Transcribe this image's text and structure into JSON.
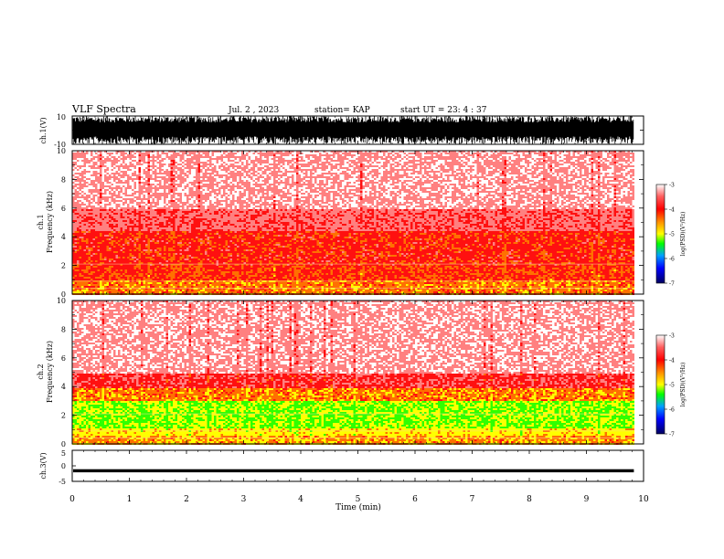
{
  "header": {
    "title": "VLF Spectra",
    "date": "Jul. 2 , 2023",
    "station": "station= KAP",
    "start": "start UT =  23: 4  : 37"
  },
  "chart_data": [
    {
      "type": "line",
      "panel": "ch1-waveform",
      "ylabel": "ch.1(V)",
      "ylim": [
        -10,
        10
      ],
      "yticks": [
        "10",
        "-10"
      ],
      "xlim": [
        0,
        10
      ],
      "x_extent": [
        0,
        9.83
      ],
      "color": "#000000",
      "description_values": {
        "envelope_max": 10,
        "envelope_min": -10
      }
    },
    {
      "type": "heatmap",
      "panel": "ch1-spectrogram",
      "ylabel": "ch.1",
      "ylabel2": "Frequency (kHz)",
      "ylim": [
        0,
        10
      ],
      "yticks": [
        "0",
        "2",
        "4",
        "6",
        "8",
        "10"
      ],
      "xlim": [
        0,
        10
      ],
      "x_extent": [
        0,
        9.83
      ],
      "band_levels": [
        {
          "fmin": 0,
          "fmax": 1.0,
          "level": -4.2
        },
        {
          "fmin": 1.0,
          "fmax": 2.0,
          "level": -3.9
        },
        {
          "fmin": 2.0,
          "fmax": 4.5,
          "level": -3.8
        },
        {
          "fmin": 4.5,
          "fmax": 6.0,
          "level": -3.4
        },
        {
          "fmin": 6.0,
          "fmax": 10.0,
          "level": -3.1
        }
      ],
      "colorbar": {
        "label": "log(PSD)(V²/Hz)",
        "ticks": [
          "-3",
          "-4",
          "-5",
          "-6",
          "-7"
        ],
        "range": [
          -7,
          -3
        ]
      }
    },
    {
      "type": "heatmap",
      "panel": "ch2-spectrogram",
      "ylabel": "ch.2",
      "ylabel2": "Frequency (kHz)",
      "ylim": [
        0,
        10
      ],
      "yticks": [
        "0",
        "2",
        "4",
        "6",
        "8",
        "10"
      ],
      "xlim": [
        0,
        10
      ],
      "x_extent": [
        0,
        9.83
      ],
      "band_levels": [
        {
          "fmin": 0,
          "fmax": 0.7,
          "level": -4.3
        },
        {
          "fmin": 0.7,
          "fmax": 1.2,
          "level": -4.6
        },
        {
          "fmin": 1.2,
          "fmax": 3.0,
          "level": -5.0
        },
        {
          "fmin": 3.0,
          "fmax": 4.0,
          "level": -4.2
        },
        {
          "fmin": 4.0,
          "fmax": 5.0,
          "level": -3.6
        },
        {
          "fmin": 5.0,
          "fmax": 10.0,
          "level": -3.1
        }
      ],
      "colorbar": {
        "label": "log(PSD)(V²/Hz)",
        "ticks": [
          "-3",
          "-4",
          "-5",
          "-6",
          "-7"
        ],
        "range": [
          -7,
          -3
        ]
      }
    },
    {
      "type": "line",
      "panel": "ch3-waveform",
      "ylabel": "ch.3(V)",
      "ylim": [
        -5,
        5
      ],
      "yticks": [
        "5",
        "0",
        "-5"
      ],
      "xlim": [
        0,
        10
      ],
      "x_extent": [
        0,
        9.83
      ],
      "values": {
        "mean": -1.6,
        "amplitude": 0.5
      },
      "xlabel": "Time (min)",
      "xticks": [
        "0",
        "1",
        "2",
        "3",
        "4",
        "5",
        "6",
        "7",
        "8",
        "9",
        "10"
      ]
    }
  ],
  "colors": {
    "colormap": [
      "#000080",
      "#0000ff",
      "#00a0ff",
      "#00ff00",
      "#ffff00",
      "#ff8000",
      "#ff0000",
      "#ffffff"
    ],
    "axis": "#000000",
    "waveform": "#000000"
  }
}
